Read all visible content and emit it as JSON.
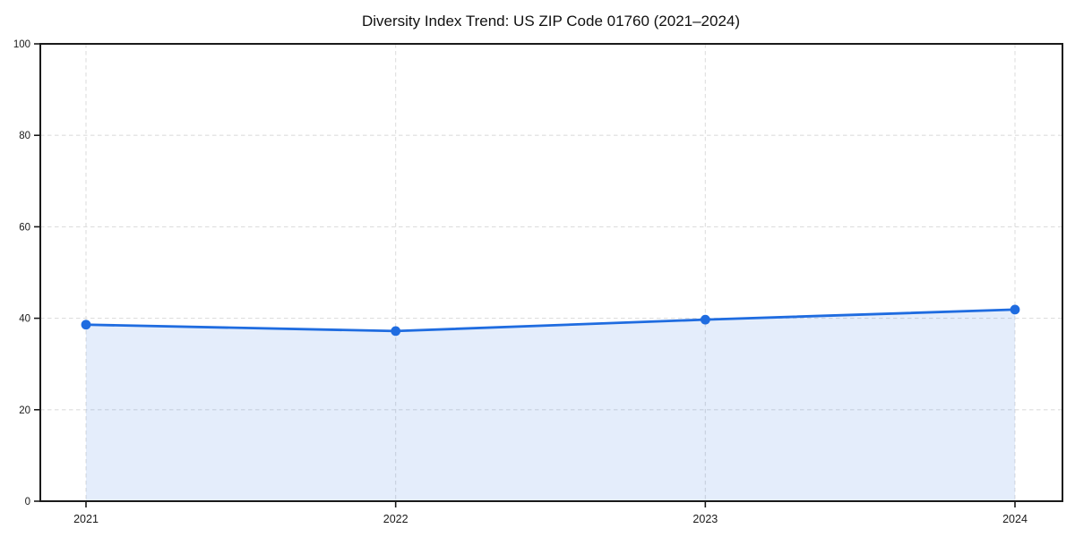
{
  "figure": {
    "background": "#ffffff"
  },
  "chart_data": {
    "type": "area",
    "title": "Diversity Index Trend: US ZIP Code 01760 (2021–2024)",
    "x": [
      2021,
      2022,
      2023,
      2024
    ],
    "xticklabels": [
      "2021",
      "2022",
      "2023",
      "2024"
    ],
    "series": [
      {
        "name": "Diversity Index",
        "values": [
          38.6,
          37.2,
          39.7,
          41.9
        ]
      }
    ],
    "xlabel": "",
    "ylabel": "",
    "ylim": [
      0,
      100
    ],
    "yticks": [
      0,
      20,
      40,
      60,
      80,
      100
    ],
    "yticklabels": [
      "0",
      "20",
      "40",
      "60",
      "80",
      "100"
    ],
    "grid": true,
    "grid_style": "dashed",
    "legend_position": "none",
    "marker": "circle",
    "colors": {
      "line": "#1f6ce0",
      "marker": "#1f6ce0",
      "fill": "#1f6ce0",
      "fill_opacity": 0.12,
      "grid": "#dedede",
      "spine": "#1a1a1a",
      "tick_text": "#1a1a1a",
      "title_text": "#111111",
      "background": "#ffffff"
    }
  }
}
